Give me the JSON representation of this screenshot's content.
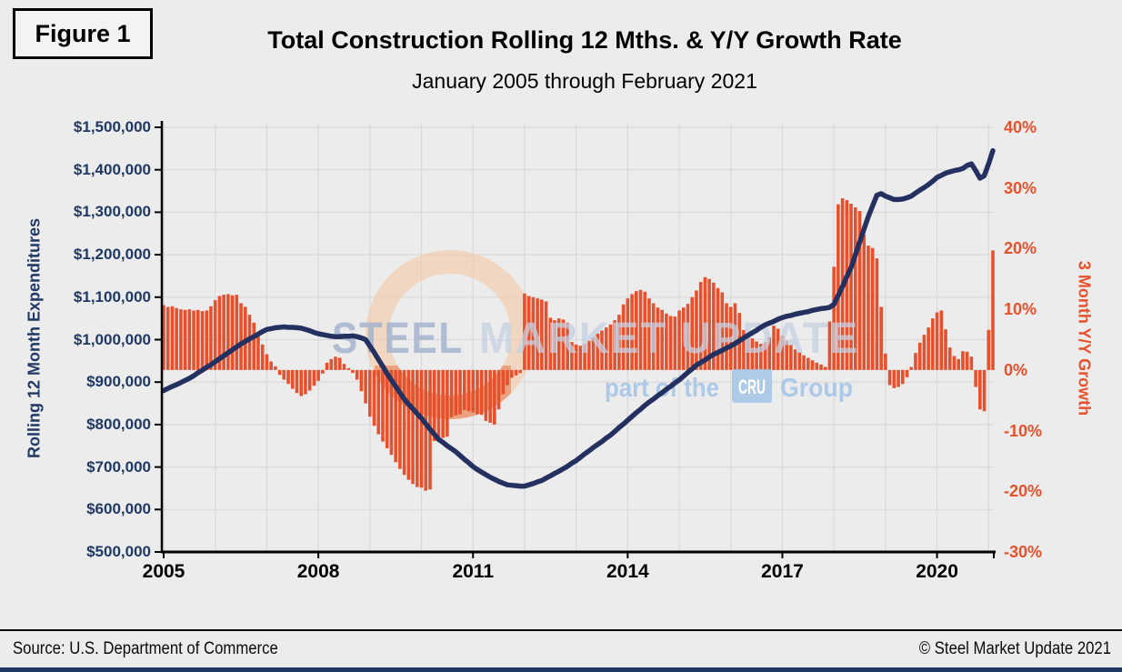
{
  "figure_label": "Figure 1",
  "header": {
    "title": "Total Construction Rolling 12 Mths. & Y/Y Growth Rate",
    "subtitle": "January 2005 through February 2021"
  },
  "footer": {
    "source": "Source: U.S. Department of Commerce",
    "copyright": "© Steel Market Update 2021"
  },
  "watermark": {
    "steel": "STEEL",
    "market_update": "MARKET UPDATE",
    "part_of_the": "part of the",
    "cru": "CRU",
    "group": "Group"
  },
  "colors": {
    "background": "#ECECEC",
    "gridline": "#D9D9D9",
    "bar_orange": "#E7502C",
    "line_navy": "#233060",
    "left_axis_text": "#1F3864",
    "right_axis_text": "#E8512B",
    "axis_line": "#000000",
    "bottom_band": "#1F3864"
  },
  "chart_data": {
    "type": "combo",
    "title": "Total Construction Rolling 12 Mths. & Y/Y Growth Rate",
    "subtitle": "January 2005 through February 2021",
    "frequency": "monthly",
    "x_start": "2005-01",
    "x_end": "2021-02",
    "grid": true,
    "x_axis": {
      "tick_labels": [
        "2005",
        "2008",
        "2011",
        "2014",
        "2017",
        "2020"
      ],
      "tick_month_interval": 36
    },
    "left_axis": {
      "label": "Rolling 12 Month Expenditures",
      "min": 500000,
      "max": 1500000,
      "tick_step": 100000,
      "ticks": [
        "$1,500,000",
        "$1,400,000",
        "$1,300,000",
        "$1,200,000",
        "$1,100,000",
        "$1,000,000",
        "$900,000",
        "$800,000",
        "$700,000",
        "$600,000",
        "$500,000"
      ]
    },
    "right_axis": {
      "label": "3 Month Y/Y Growth",
      "min": -30,
      "max": 40,
      "tick_step": 10,
      "ticks": [
        "40%",
        "30%",
        "20%",
        "10%",
        "0%",
        "-10%",
        "-20%",
        "-30%"
      ]
    },
    "series": [
      {
        "name": "Rolling 12 Month Expenditures",
        "type": "line",
        "axis": "left",
        "color": "#233060",
        "values": [
          880000,
          885000,
          890000,
          894000,
          899000,
          904000,
          909000,
          915000,
          922000,
          928000,
          935000,
          941000,
          948000,
          955000,
          962000,
          969000,
          976000,
          983000,
          990000,
          996000,
          1002000,
          1007000,
          1013000,
          1019000,
          1024000,
          1026000,
          1028000,
          1029000,
          1030000,
          1029000,
          1029000,
          1028000,
          1027000,
          1024000,
          1021000,
          1017000,
          1014000,
          1012000,
          1010000,
          1008000,
          1007000,
          1007000,
          1008000,
          1008000,
          1009000,
          1007000,
          1004000,
          1000000,
          985000,
          970000,
          953000,
          937000,
          920000,
          905000,
          890000,
          875000,
          860000,
          848000,
          837000,
          826000,
          815000,
          802000,
          789000,
          777000,
          765000,
          758000,
          750000,
          743000,
          736000,
          727000,
          718000,
          710000,
          701000,
          694000,
          688000,
          682000,
          676000,
          671000,
          666000,
          662000,
          658000,
          657000,
          656000,
          655000,
          655000,
          658000,
          661000,
          665000,
          668000,
          674000,
          679000,
          685000,
          690000,
          696000,
          702000,
          709000,
          715000,
          723000,
          731000,
          738000,
          746000,
          753000,
          760000,
          768000,
          775000,
          784000,
          793000,
          801000,
          810000,
          819000,
          828000,
          836000,
          845000,
          853000,
          860000,
          868000,
          875000,
          883000,
          890000,
          898000,
          905000,
          914000,
          923000,
          931000,
          940000,
          946000,
          952000,
          959000,
          965000,
          970000,
          975000,
          980000,
          985000,
          991000,
          997000,
          1004000,
          1010000,
          1016000,
          1022000,
          1029000,
          1035000,
          1039000,
          1043000,
          1048000,
          1052000,
          1055000,
          1057000,
          1060000,
          1062000,
          1064000,
          1066000,
          1069000,
          1071000,
          1073000,
          1074000,
          1076000,
          1083000,
          1104000,
          1125000,
          1148000,
          1170000,
          1200000,
          1230000,
          1260000,
          1290000,
          1315000,
          1340000,
          1344000,
          1338000,
          1334000,
          1330000,
          1330000,
          1331000,
          1334000,
          1338000,
          1345000,
          1352000,
          1358000,
          1365000,
          1373000,
          1382000,
          1387000,
          1392000,
          1395000,
          1398000,
          1400000,
          1403000,
          1410000,
          1414000,
          1398000,
          1380000,
          1386000,
          1414000,
          1445000
        ]
      },
      {
        "name": "3 Month Y/Y Growth",
        "type": "bar",
        "axis": "right",
        "color": "#E7502C",
        "values": [
          10.7,
          10.4,
          10.5,
          10.2,
          10.0,
          9.9,
          10.0,
          9.8,
          9.9,
          9.7,
          9.8,
          10.5,
          11.5,
          12.2,
          12.4,
          12.5,
          12.3,
          12.4,
          11.0,
          10.4,
          9.1,
          7.8,
          6.0,
          4.2,
          2.6,
          1.4,
          0.6,
          -0.8,
          -1.6,
          -2.3,
          -3.1,
          -3.8,
          -4.3,
          -4.0,
          -3.4,
          -2.6,
          -1.8,
          -0.6,
          1.2,
          1.8,
          2.2,
          2.0,
          1.0,
          0.3,
          -0.5,
          -1.6,
          -3.5,
          -5.5,
          -7.7,
          -9.2,
          -10.6,
          -11.8,
          -12.9,
          -14.0,
          -15.2,
          -16.3,
          -17.3,
          -18.1,
          -18.8,
          -19.3,
          -19.4,
          -19.9,
          -19.7,
          -11.7,
          -11.5,
          -11.2,
          -11.0,
          -7.8,
          -7.5,
          -7.3,
          -6.6,
          -6.8,
          -7.0,
          -7.3,
          -7.4,
          -8.4,
          -8.7,
          -9.0,
          -6.5,
          -4.0,
          -2.5,
          -1.3,
          -0.9,
          -0.5,
          12.6,
          12.2,
          12.0,
          11.8,
          11.6,
          11.3,
          8.6,
          8.2,
          8.5,
          8.3,
          7.8,
          4.6,
          4.2,
          4.0,
          4.3,
          4.8,
          5.4,
          6.0,
          6.5,
          7.0,
          7.5,
          8.2,
          9.1,
          10.8,
          11.8,
          12.5,
          13.0,
          13.2,
          12.9,
          11.8,
          11.0,
          10.3,
          9.9,
          9.3,
          8.9,
          8.8,
          9.8,
          10.3,
          10.9,
          12.0,
          13.1,
          14.5,
          15.3,
          15.0,
          14.4,
          13.5,
          12.8,
          11.0,
          10.4,
          11.0,
          9.4,
          6.6,
          5.7,
          5.2,
          4.7,
          4.3,
          4.6,
          5.4,
          7.3,
          6.8,
          5.7,
          4.8,
          4.1,
          3.4,
          2.9,
          2.4,
          2.0,
          1.6,
          1.2,
          0.9,
          0.5,
          8.0,
          17.0,
          27.3,
          28.3,
          28.0,
          27.4,
          26.8,
          26.2,
          22.3,
          20.5,
          20.1,
          18.4,
          10.4,
          2.7,
          -2.5,
          -3.0,
          -2.8,
          -2.3,
          -1.2,
          0.5,
          2.8,
          4.5,
          5.8,
          7.0,
          8.5,
          9.5,
          9.8,
          6.7,
          3.7,
          2.3,
          1.8,
          3.1,
          3.0,
          2.2,
          -2.8,
          -6.5,
          -6.8,
          6.6,
          19.7
        ]
      }
    ]
  }
}
